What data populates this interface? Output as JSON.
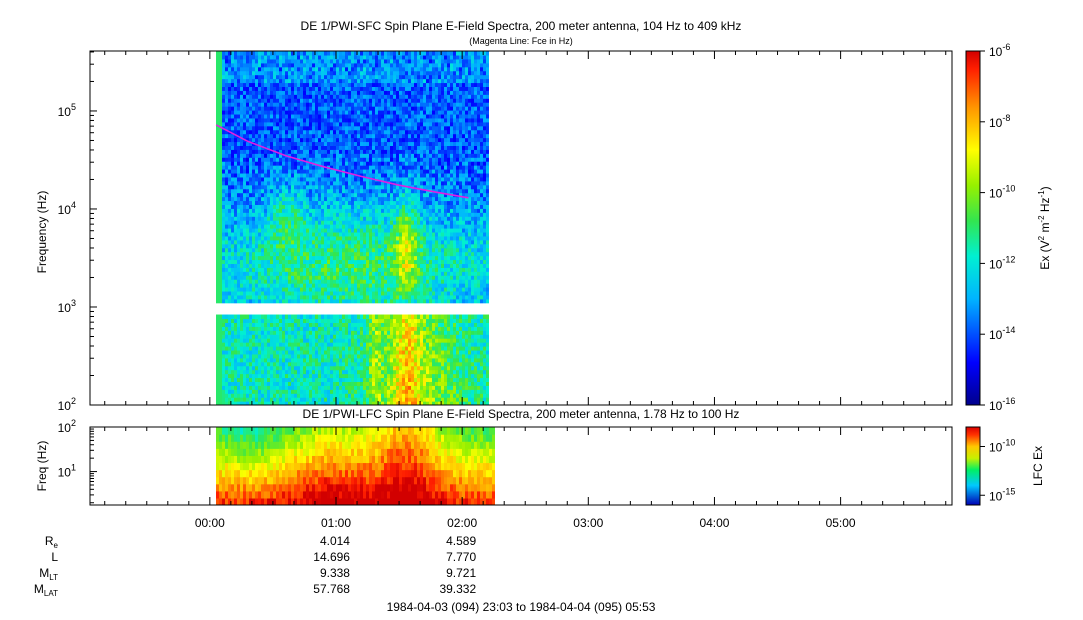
{
  "figure": {
    "title": "DE 1/PWI-SFC  Spin Plane E-Field Spectra, 200 meter antenna, 104 Hz to 409 kHz",
    "subtitle": "(Magenta Line: Fce in Hz)",
    "lower_title": "DE 1/PWI-LFC  Spin Plane E-Field Spectra, 200 meter antenna, 1.78 Hz to 100 Hz",
    "time_range": "1984-04-03 (094) 23:03 to 1984-04-04 (095) 05:53",
    "colors": {
      "fce_line": "#e020e0",
      "background": "#ffffff"
    }
  },
  "chart_data": [
    {
      "type": "heatmap",
      "panel": "SFC",
      "title": "DE 1/PWI-SFC  Spin Plane E-Field Spectra, 200 meter antenna, 104 Hz to 409 kHz",
      "subtitle": "(Magenta Line: Fce in Hz)",
      "ylabel": "Frequency (Hz)",
      "yscale": "log",
      "ylim": [
        100,
        409000
      ],
      "yticks": [
        {
          "value": 100,
          "base": "10",
          "exp": "2"
        },
        {
          "value": 1000,
          "base": "10",
          "exp": "3"
        },
        {
          "value": 10000,
          "base": "10",
          "exp": "4"
        },
        {
          "value": 100000,
          "base": "10",
          "exp": "5"
        }
      ],
      "xlim_hours": [
        -0.95,
        5.883
      ],
      "data_span_hours": [
        0.05,
        2.2
      ],
      "fce_line": {
        "name": "Fce",
        "x_hours": [
          0.05,
          0.3,
          0.6,
          0.9,
          1.2,
          1.5,
          1.8,
          2.05
        ],
        "y_hz": [
          72000,
          49000,
          35000,
          27000,
          21500,
          17500,
          14800,
          13000
        ]
      },
      "colorbar": {
        "label_base": "Ex (V",
        "label_exp1": "2",
        "label_mid": " m",
        "label_exp2": "-2",
        "label_mid2": " Hz",
        "label_exp3": "-1",
        "label_end": ")",
        "scale": "log",
        "range": [
          1e-16,
          1e-06
        ],
        "ticks": [
          {
            "value": 1e-06,
            "base": "10",
            "exp": "-6"
          },
          {
            "value": 1e-08,
            "base": "10",
            "exp": "-8"
          },
          {
            "value": 1e-10,
            "base": "10",
            "exp": "-10"
          },
          {
            "value": 1e-12,
            "base": "10",
            "exp": "-12"
          },
          {
            "value": 1e-14,
            "base": "10",
            "exp": "-14"
          },
          {
            "value": 1e-16,
            "base": "10",
            "exp": "-16"
          }
        ]
      }
    },
    {
      "type": "heatmap",
      "panel": "LFC",
      "title": "DE 1/PWI-LFC  Spin Plane E-Field Spectra, 200 meter antenna, 1.78 Hz to 100 Hz",
      "ylabel": "Freq (Hz)",
      "yscale": "log",
      "ylim": [
        1.78,
        100
      ],
      "yticks": [
        {
          "value": 10,
          "base": "10",
          "exp": "1"
        },
        {
          "value": 100,
          "base": "10",
          "exp": "2"
        }
      ],
      "xlim_hours": [
        -0.95,
        5.883
      ],
      "data_span_hours": [
        0.05,
        2.25
      ],
      "colorbar": {
        "label": "LFC Ex",
        "scale": "log",
        "range": [
          1e-16,
          1e-06
        ],
        "ticks": [
          {
            "value": 1e-10,
            "base": "10",
            "exp": "-10"
          },
          {
            "value": 1e-15,
            "base": "10",
            "exp": "-15"
          }
        ]
      }
    }
  ],
  "xaxis": {
    "ticks": [
      {
        "hours": 0,
        "label": "00:00"
      },
      {
        "hours": 1,
        "label": "01:00"
      },
      {
        "hours": 2,
        "label": "02:00"
      },
      {
        "hours": 3,
        "label": "03:00"
      },
      {
        "hours": 4,
        "label": "04:00"
      },
      {
        "hours": 5,
        "label": "05:00"
      }
    ]
  },
  "ephemeris": {
    "rows": [
      {
        "label": "R",
        "sub": "e",
        "values": [
          "4.014",
          "4.589"
        ]
      },
      {
        "label": "L",
        "sub": "",
        "values": [
          "14.696",
          "7.770"
        ]
      },
      {
        "label": "M",
        "sub": "LT",
        "values": [
          "9.338",
          "9.721"
        ]
      },
      {
        "label": "M",
        "sub": "LAT",
        "values": [
          "57.768",
          "39.332"
        ]
      }
    ],
    "value_hours": [
      1,
      2
    ]
  }
}
